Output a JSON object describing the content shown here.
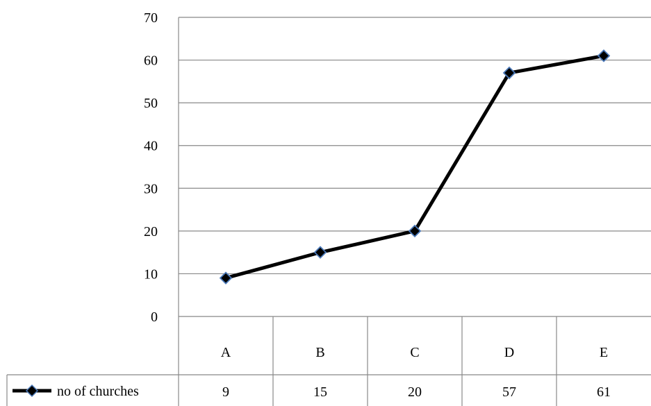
{
  "chart_data": {
    "type": "line",
    "categories": [
      "A",
      "B",
      "C",
      "D",
      "E"
    ],
    "series": [
      {
        "name": "no of churches",
        "values": [
          9,
          15,
          20,
          57,
          61
        ]
      }
    ],
    "ylim": [
      0,
      70
    ],
    "yticks": [
      0,
      10,
      20,
      30,
      40,
      50,
      60,
      70
    ],
    "grid": true,
    "legend": "data-table-left",
    "colors": {
      "line": "#000000",
      "marker_fill": "#000000",
      "marker_stroke": "#4a78b8",
      "grid": "#888888"
    }
  }
}
